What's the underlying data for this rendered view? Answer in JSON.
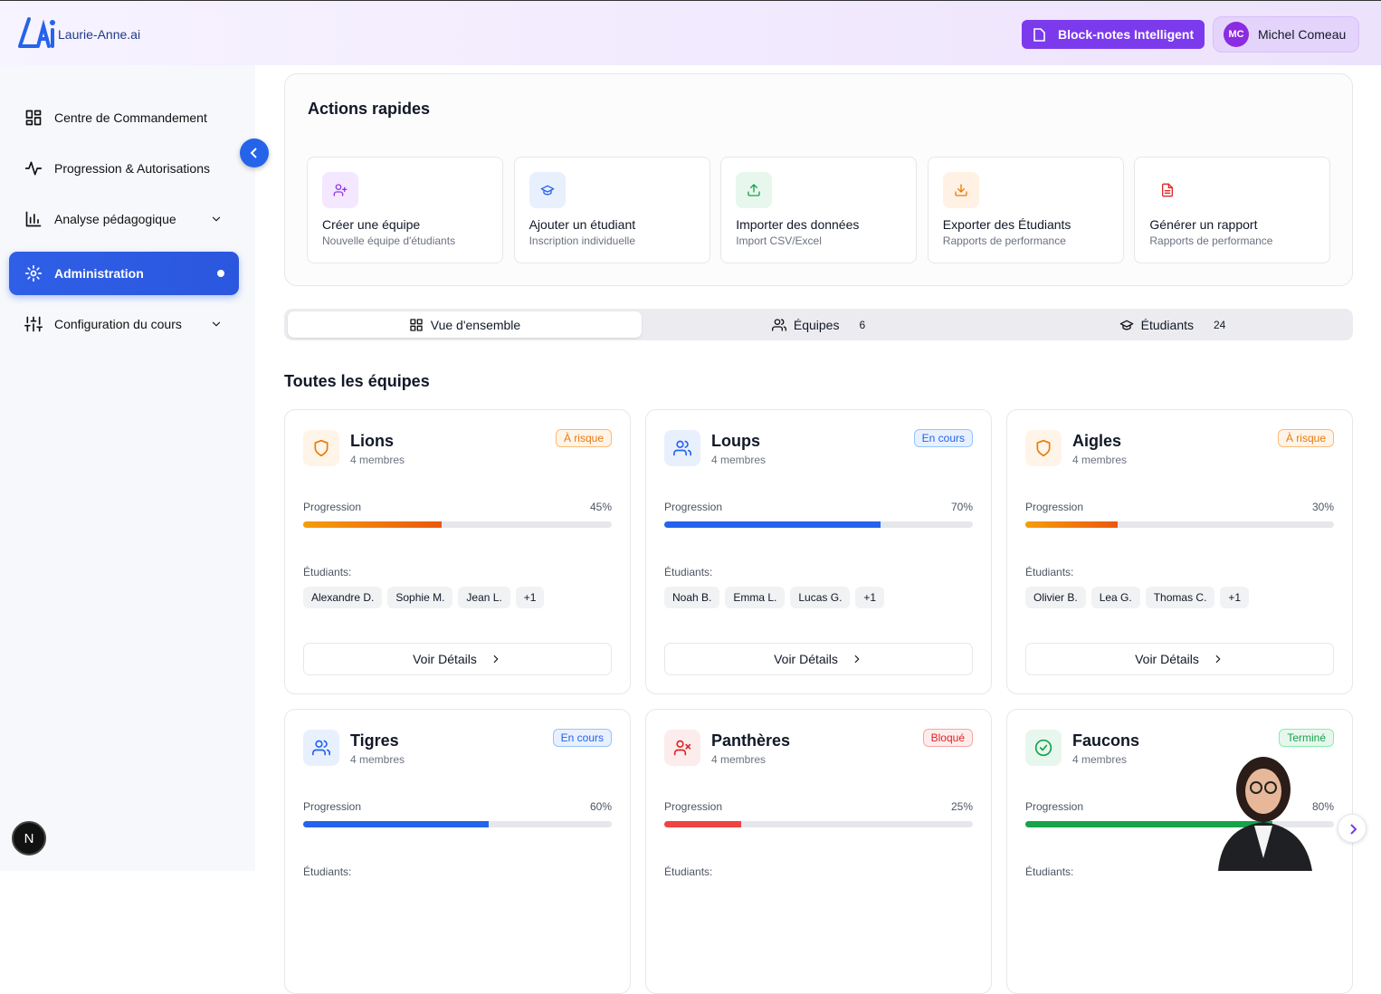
{
  "header": {
    "brand": "Laurie-Anne.ai",
    "notes_button": "Block-notes Intelligent",
    "user_initials": "MC",
    "user_name": "Michel Comeau"
  },
  "sidebar": {
    "items": [
      "Centre de Commandement",
      "Progression & Autorisations",
      "Analyse pédagogique",
      "Administration",
      "Configuration du cours"
    ],
    "badge": "N"
  },
  "quick_actions": {
    "title": "Actions rapides",
    "items": [
      {
        "title": "Créer une équipe",
        "subtitle": "Nouvelle équipe d'étudiants"
      },
      {
        "title": "Ajouter un étudiant",
        "subtitle": "Inscription individuelle"
      },
      {
        "title": "Importer des données",
        "subtitle": "Import CSV/Excel"
      },
      {
        "title": "Exporter des Étudiants",
        "subtitle": "Rapports de performance"
      },
      {
        "title": "Générer un rapport",
        "subtitle": "Rapports de performance"
      }
    ]
  },
  "tabs": [
    {
      "label": "Vue d'ensemble"
    },
    {
      "label": "Équipes",
      "count": 6
    },
    {
      "label": "Étudiants",
      "count": 24
    }
  ],
  "teams": {
    "title": "Toutes les équipes",
    "items": [
      {
        "name": "Lions",
        "members": "4 membres",
        "status": "À risque",
        "progress_label": "Progression",
        "progress": 45,
        "progress_text": "45%",
        "students_label": "Étudiants:",
        "students": [
          "Alexandre D.",
          "Sophie M.",
          "Jean L.",
          "+1"
        ],
        "button": "Voir Détails"
      },
      {
        "name": "Loups",
        "members": "4 membres",
        "status": "En cours",
        "progress_label": "Progression",
        "progress": 70,
        "progress_text": "70%",
        "students_label": "Étudiants:",
        "students": [
          "Noah B.",
          "Emma L.",
          "Lucas G.",
          "+1"
        ],
        "button": "Voir Détails"
      },
      {
        "name": "Aigles",
        "members": "4 membres",
        "status": "À risque",
        "progress_label": "Progression",
        "progress": 30,
        "progress_text": "30%",
        "students_label": "Étudiants:",
        "students": [
          "Olivier B.",
          "Lea G.",
          "Thomas C.",
          "+1"
        ],
        "button": "Voir Détails"
      },
      {
        "name": "Tigres",
        "members": "4 membres",
        "status": "En cours",
        "progress_label": "Progression",
        "progress": 60,
        "progress_text": "60%",
        "students_label": "Étudiants:"
      },
      {
        "name": "Panthères",
        "members": "4 membres",
        "status": "Bloqué",
        "progress_label": "Progression",
        "progress": 25,
        "progress_text": "25%",
        "students_label": "Étudiants:"
      },
      {
        "name": "Faucons",
        "members": "4 membres",
        "status": "Terminé",
        "progress_label": "Progression",
        "progress": 80,
        "progress_text": "80%",
        "students_label": "Étudiants:"
      }
    ]
  }
}
